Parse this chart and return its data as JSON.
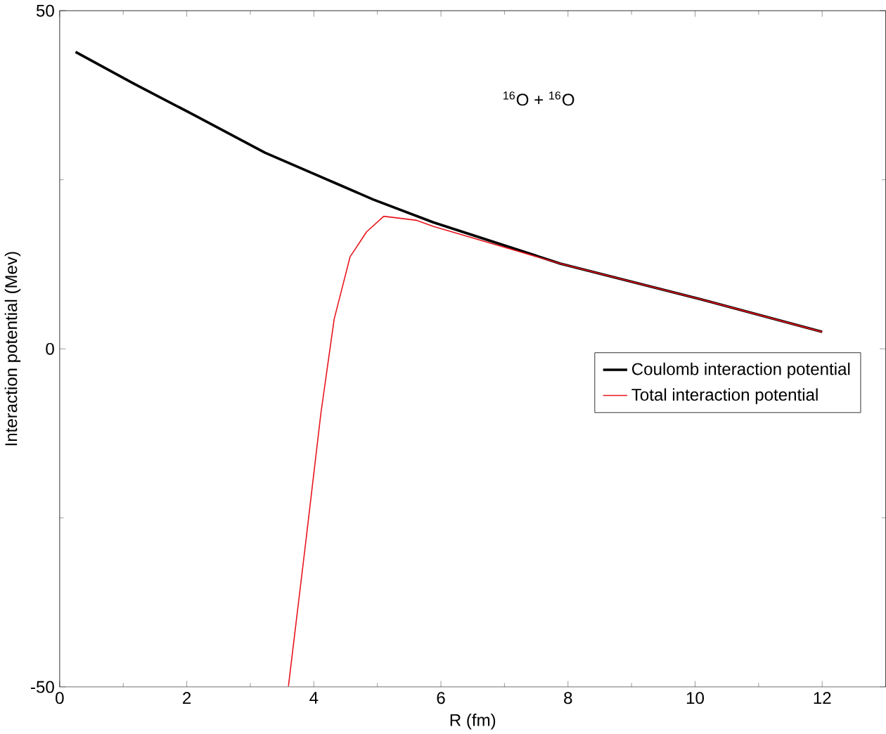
{
  "chart_data": {
    "type": "line",
    "xlabel": "R (fm)",
    "ylabel": "Interaction potential (Mev)",
    "annotations": [
      "$^{16}$O + $^{16}$O"
    ],
    "xlim": [
      0,
      13
    ],
    "ylim": [
      -50,
      50
    ],
    "xticks": [
      0,
      2,
      4,
      6,
      8,
      10,
      12
    ],
    "yticks": [
      -50,
      0,
      50
    ],
    "legend": "right",
    "grid": false,
    "series": [
      {
        "name": "Coulomb interaction potential",
        "color": "#000000",
        "x": [
          0.25,
          1.17,
          2.11,
          3.23,
          4.34,
          4.93,
          5.88,
          7.88,
          10.06,
          12.0
        ],
        "values": [
          43.9,
          39.2,
          34.6,
          29.0,
          24.5,
          22.1,
          18.7,
          12.6,
          7.4,
          2.5
        ]
      },
      {
        "name": "Total interaction potential",
        "color": "#e8141c",
        "x": [
          3.6,
          3.88,
          4.11,
          4.32,
          4.57,
          4.83,
          5.1,
          5.62,
          5.88,
          7.88,
          10.06,
          12.0
        ],
        "values": [
          -49.9,
          -28.0,
          -9.6,
          4.4,
          13.6,
          17.3,
          19.6,
          19.0,
          18.1,
          12.6,
          7.4,
          2.5
        ]
      }
    ]
  }
}
